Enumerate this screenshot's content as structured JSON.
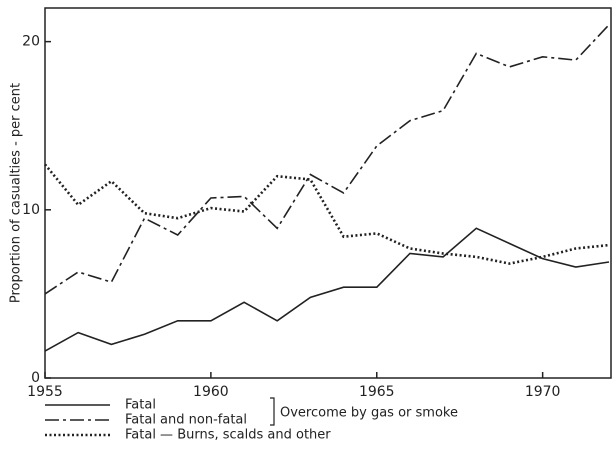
{
  "chart_data": {
    "type": "line",
    "y_label": "Proportion of casualties - per cent",
    "annotation": "Overcome by gas or smoke",
    "x": [
      1955,
      1956,
      1957,
      1958,
      1959,
      1960,
      1961,
      1962,
      1963,
      1964,
      1965,
      1966,
      1967,
      1968,
      1969,
      1970,
      1971,
      1972
    ],
    "xlim": [
      1955,
      1972
    ],
    "xticks": [
      1955,
      1960,
      1965,
      1970
    ],
    "ylim": [
      0,
      22
    ],
    "yticks": [
      0,
      10,
      20
    ],
    "grid": false,
    "series": [
      {
        "name": "Fatal",
        "color": "#222222",
        "linestyle": "solid",
        "values": [
          1.6,
          2.7,
          2.0,
          2.6,
          3.4,
          3.4,
          4.5,
          3.4,
          4.8,
          5.4,
          5.4,
          7.4,
          7.2,
          8.9,
          8.0,
          7.1,
          6.6,
          6.9
        ]
      },
      {
        "name": "Fatal and non-fatal",
        "color": "#222222",
        "linestyle": "dashdot",
        "values": [
          5.0,
          6.3,
          5.7,
          9.5,
          8.5,
          10.7,
          10.8,
          8.9,
          12.1,
          11.0,
          13.8,
          15.3,
          15.9,
          19.3,
          18.5,
          19.1,
          18.9,
          21.0
        ]
      },
      {
        "name": "Fatal — Burns, scalds and other",
        "color": "#222222",
        "linestyle": "dotted",
        "values": [
          12.7,
          10.3,
          11.7,
          9.8,
          9.5,
          10.1,
          9.9,
          12.0,
          11.8,
          8.4,
          8.6,
          7.7,
          7.4,
          7.2,
          6.8,
          7.2,
          7.7,
          7.9
        ]
      }
    ]
  }
}
